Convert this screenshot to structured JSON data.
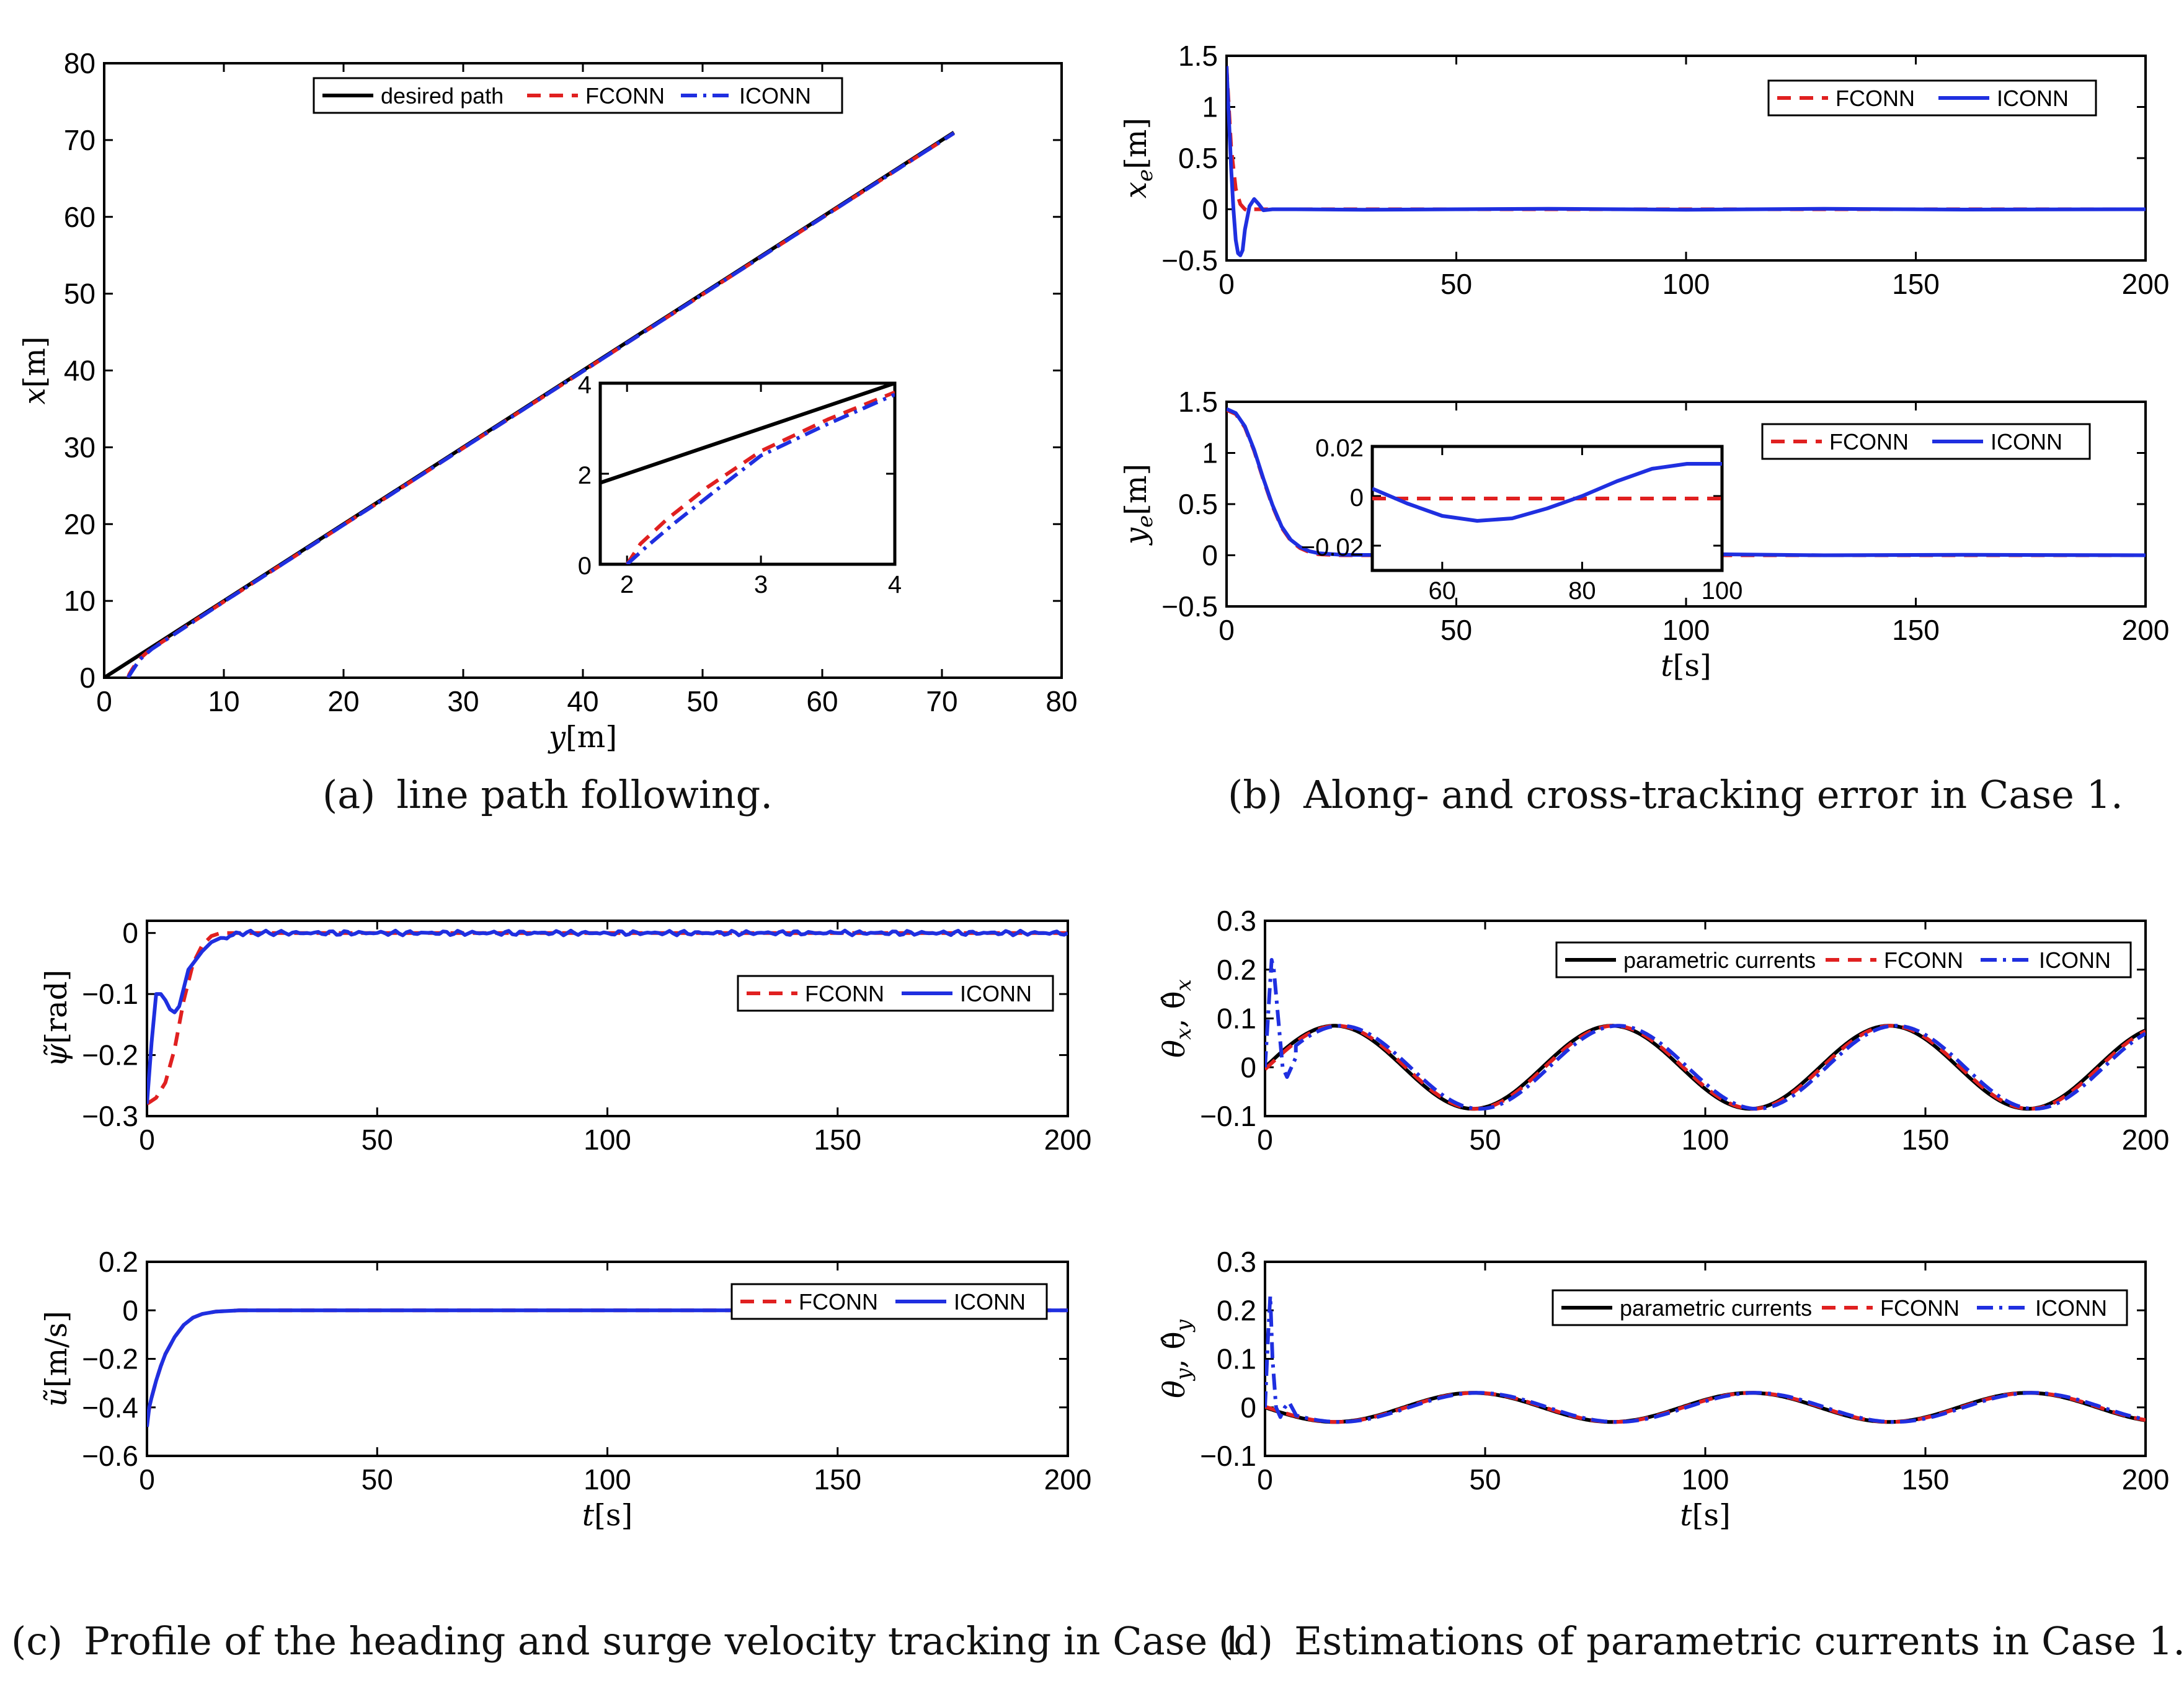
{
  "colors": {
    "black": "#000000",
    "red": "#e02020",
    "blue": "#1f2fe0"
  },
  "captions": {
    "a": {
      "tag": "(a)",
      "text": "line path following."
    },
    "b": {
      "tag": "(b)",
      "text": "Along- and cross-tracking error in Case 1."
    },
    "c": {
      "tag": "(c)",
      "text": "Profile of the heading and surge velocity tracking in Case 1."
    },
    "d": {
      "tag": "(d)",
      "text": "Estimations of parametric currents in Case 1."
    }
  },
  "chart_data": [
    {
      "id": "a",
      "type": "line",
      "title": "",
      "xlabel": {
        "v": "y",
        "u": "[m]"
      },
      "ylabel": {
        "v": "x",
        "u": "[m]"
      },
      "xlim": [
        0,
        80
      ],
      "ylim": [
        0,
        80
      ],
      "xticks": [
        "0",
        "10",
        "20",
        "30",
        "40",
        "50",
        "60",
        "70",
        "80"
      ],
      "yticks": [
        "0",
        "10",
        "20",
        "30",
        "40",
        "50",
        "60",
        "70",
        "80"
      ],
      "legend": "top-center",
      "series": [
        {
          "name": "desired path",
          "color": "#000000",
          "dash": "solid",
          "x": [
            0,
            71
          ],
          "y": [
            0,
            71
          ]
        },
        {
          "name": "FCONN",
          "color": "#e02020",
          "dash": "dash",
          "x": [
            2,
            2.1,
            2.3,
            2.6,
            3,
            3.5,
            4,
            10,
            71
          ],
          "y": [
            0,
            0.45,
            1.0,
            1.7,
            2.5,
            3.2,
            3.8,
            9.9,
            70.9
          ]
        },
        {
          "name": "ICONN",
          "color": "#1f2fe0",
          "dash": "dashdot",
          "x": [
            2,
            2.15,
            2.35,
            2.65,
            3,
            3.5,
            4,
            10,
            71
          ],
          "y": [
            0,
            0.4,
            0.9,
            1.6,
            2.4,
            3.1,
            3.75,
            9.9,
            70.9
          ]
        }
      ],
      "inset": {
        "xlim": [
          1.8,
          4
        ],
        "ylim": [
          0,
          4
        ],
        "xticks": [
          "2",
          "3",
          "4"
        ],
        "yticks": [
          "0",
          "2",
          "4"
        ],
        "series": [
          {
            "name": "desired path",
            "x": [
              1.8,
              4
            ],
            "y": [
              1.8,
              4
            ]
          },
          {
            "name": "FCONN",
            "x": [
              2,
              2.1,
              2.3,
              2.6,
              3,
              3.5,
              4
            ],
            "y": [
              0,
              0.45,
              1.0,
              1.7,
              2.5,
              3.2,
              3.8
            ]
          },
          {
            "name": "ICONN",
            "x": [
              2,
              2.15,
              2.35,
              2.65,
              3,
              3.5,
              4
            ],
            "y": [
              0,
              0.4,
              0.9,
              1.6,
              2.4,
              3.1,
              3.75
            ]
          }
        ]
      }
    },
    {
      "id": "b1",
      "type": "line",
      "title": "",
      "xlabel": null,
      "ylabel": {
        "v": "x",
        "sub": "e",
        "u": "[m]"
      },
      "xlim": [
        0,
        200
      ],
      "ylim": [
        -0.5,
        1.5
      ],
      "xticks": [
        "0",
        "50",
        "100",
        "150",
        "200"
      ],
      "yticks": [
        "−0.5",
        "0",
        "0.5",
        "1",
        "1.5"
      ],
      "legend": "top-right",
      "series": [
        {
          "name": "FCONN",
          "color": "#e02020",
          "dash": "dash",
          "x": [
            0,
            0.5,
            1,
            2,
            3,
            4,
            5,
            6,
            8,
            10,
            20,
            50,
            100,
            150,
            200
          ],
          "y": [
            1.4,
            1.0,
            0.6,
            0.2,
            0.05,
            0.0,
            -0.02,
            0.0,
            0.0,
            0.0,
            0.0,
            0.0,
            0.0,
            0.0,
            0.0
          ]
        },
        {
          "name": "ICONN",
          "color": "#1f2fe0",
          "dash": "solid",
          "x": [
            0,
            0.5,
            1,
            1.5,
            2,
            2.5,
            3,
            3.5,
            4,
            5,
            6,
            7,
            8,
            10,
            15,
            30,
            50,
            70,
            100,
            130,
            160,
            200
          ],
          "y": [
            1.4,
            0.9,
            0.4,
            0.0,
            -0.3,
            -0.43,
            -0.45,
            -0.4,
            -0.2,
            0.03,
            0.1,
            0.05,
            -0.01,
            0.0,
            0.0,
            -0.005,
            0.0,
            0.005,
            -0.005,
            0.005,
            -0.003,
            0.0
          ]
        }
      ]
    },
    {
      "id": "b2",
      "type": "line",
      "title": "",
      "xlabel": {
        "v": "t",
        "u": "[s]"
      },
      "ylabel": {
        "v": "y",
        "sub": "e",
        "u": "[m]"
      },
      "xlim": [
        0,
        200
      ],
      "ylim": [
        -0.5,
        1.5
      ],
      "xticks": [
        "0",
        "50",
        "100",
        "150",
        "200"
      ],
      "yticks": [
        "−0.5",
        "0",
        "0.5",
        "1",
        "1.5"
      ],
      "legend": "top-right",
      "series": [
        {
          "name": "FCONN",
          "color": "#e02020",
          "dash": "dash",
          "x": [
            0,
            2,
            4,
            6,
            8,
            10,
            12,
            14,
            16,
            18,
            20,
            25,
            30,
            50,
            100,
            150,
            200
          ],
          "y": [
            1.42,
            1.38,
            1.25,
            1.02,
            0.74,
            0.48,
            0.27,
            0.14,
            0.07,
            0.03,
            0.01,
            0.0,
            0.0,
            0.0,
            0.0,
            0.0,
            0.0
          ]
        },
        {
          "name": "ICONN",
          "color": "#1f2fe0",
          "dash": "solid",
          "x": [
            0,
            2,
            4,
            6,
            8,
            10,
            12,
            14,
            16,
            18,
            20,
            25,
            30,
            50,
            65,
            80,
            100,
            130,
            160,
            200
          ],
          "y": [
            1.43,
            1.39,
            1.26,
            1.03,
            0.75,
            0.49,
            0.28,
            0.15,
            0.08,
            0.04,
            0.02,
            0.005,
            0.003,
            0.003,
            -0.008,
            -0.002,
            0.013,
            0.0,
            0.005,
            0.0
          ]
        }
      ],
      "inset": {
        "xlim": [
          50,
          100
        ],
        "ylim": [
          -0.03,
          0.02
        ],
        "xticks": [
          "60",
          "80",
          "100"
        ],
        "yticks": [
          "−0.02",
          "0",
          "0.02"
        ],
        "series": [
          {
            "name": "FCONN",
            "x": [
              50,
              100
            ],
            "y": [
              -0.001,
              -0.001
            ]
          },
          {
            "name": "ICONN",
            "x": [
              50,
              55,
              60,
              65,
              70,
              75,
              80,
              85,
              90,
              95,
              100
            ],
            "y": [
              0.003,
              -0.003,
              -0.008,
              -0.01,
              -0.009,
              -0.005,
              0.0,
              0.006,
              0.011,
              0.013,
              0.013
            ]
          }
        ]
      }
    },
    {
      "id": "c1",
      "type": "line",
      "title": "",
      "xlabel": null,
      "ylabel": {
        "v": "ψ̃",
        "u": "[rad]"
      },
      "xlim": [
        0,
        200
      ],
      "ylim": [
        -0.3,
        0.02
      ],
      "xticks": [
        "0",
        "50",
        "100",
        "150",
        "200"
      ],
      "yticks": [
        "−0.3",
        "−0.2",
        "−0.1",
        "0"
      ],
      "legend": "top-right",
      "series": [
        {
          "name": "FCONN",
          "color": "#e02020",
          "dash": "dash",
          "x": [
            0,
            2,
            4,
            6,
            8,
            10,
            12,
            14,
            16,
            20,
            30,
            200
          ],
          "y": [
            -0.28,
            -0.27,
            -0.245,
            -0.19,
            -0.11,
            -0.05,
            -0.02,
            -0.005,
            0.0,
            0.0,
            0.0,
            0.0
          ]
        },
        {
          "name": "ICONN",
          "color": "#1f2fe0",
          "dash": "solid",
          "x": [
            0,
            1,
            2,
            3,
            4,
            5,
            6,
            7,
            8,
            9,
            10,
            12,
            14,
            16,
            18,
            20,
            25,
            30,
            50,
            100,
            150,
            200
          ],
          "y": [
            -0.28,
            -0.18,
            -0.1,
            -0.1,
            -0.11,
            -0.125,
            -0.13,
            -0.12,
            -0.09,
            -0.06,
            -0.05,
            -0.03,
            -0.015,
            -0.008,
            -0.005,
            0.0,
            0.0,
            0.0,
            0.0,
            0.0,
            0.0,
            0.0
          ],
          "noise": 0.004
        }
      ]
    },
    {
      "id": "c2",
      "type": "line",
      "title": "",
      "xlabel": {
        "v": "t",
        "u": "[s]"
      },
      "ylabel": {
        "v": "ũ",
        "u": "[m/s]"
      },
      "xlim": [
        0,
        200
      ],
      "ylim": [
        -0.6,
        0.2
      ],
      "xticks": [
        "0",
        "50",
        "100",
        "150",
        "200"
      ],
      "yticks": [
        "−0.6",
        "−0.4",
        "−0.2",
        "0",
        "0.2"
      ],
      "legend": "top-right",
      "series": [
        {
          "name": "FCONN",
          "color": "#e02020",
          "dash": "dash",
          "x": [
            0,
            1,
            2,
            3,
            4,
            6,
            8,
            10,
            12,
            15,
            20,
            30,
            200
          ],
          "y": [
            -0.45,
            -0.36,
            -0.29,
            -0.23,
            -0.18,
            -0.11,
            -0.06,
            -0.03,
            -0.015,
            -0.005,
            0.0,
            0.0,
            0.0
          ]
        },
        {
          "name": "ICONN",
          "color": "#1f2fe0",
          "dash": "solid",
          "x": [
            0,
            0.5,
            1,
            2,
            3,
            4,
            6,
            8,
            10,
            12,
            15,
            20,
            30,
            200
          ],
          "y": [
            -0.48,
            -0.4,
            -0.36,
            -0.29,
            -0.23,
            -0.18,
            -0.11,
            -0.06,
            -0.03,
            -0.015,
            -0.005,
            0.0,
            0.0,
            0.0
          ]
        }
      ]
    },
    {
      "id": "d1",
      "type": "line",
      "title": "",
      "xlabel": null,
      "ylabel": {
        "v": "θ",
        "sub": "x",
        "u": ", θ̂",
        "sub2": "x"
      },
      "xlim": [
        0,
        200
      ],
      "ylim": [
        -0.1,
        0.3
      ],
      "xticks": [
        "0",
        "50",
        "100",
        "150",
        "200"
      ],
      "yticks": [
        "−0.1",
        "0",
        "0.1",
        "0.2",
        "0.3"
      ],
      "legend": "top-right",
      "series": [
        {
          "name": "parametric currents",
          "color": "#000000",
          "dash": "solid",
          "func": "sin",
          "amp": 0.085,
          "period": 63,
          "phase": 0
        },
        {
          "name": "FCONN",
          "color": "#e02020",
          "dash": "dash",
          "func": "sin",
          "amp": 0.085,
          "period": 63,
          "phase": 0.5
        },
        {
          "name": "ICONN",
          "color": "#1f2fe0",
          "dash": "dashdot",
          "func": "sin",
          "amp": 0.085,
          "period": 63,
          "phase": 1.5,
          "spike_x": [
            0,
            1,
            1.5,
            2,
            3,
            4,
            5,
            6,
            7
          ],
          "spike_y": [
            0.0,
            0.15,
            0.22,
            0.2,
            0.1,
            0.0,
            -0.02,
            0.0,
            0.02
          ]
        }
      ]
    },
    {
      "id": "d2",
      "type": "line",
      "title": "",
      "xlabel": {
        "v": "t",
        "u": "[s]"
      },
      "ylabel": {
        "v": "θ",
        "sub": "y",
        "u": ", θ̂",
        "sub2": "y"
      },
      "xlim": [
        0,
        200
      ],
      "ylim": [
        -0.1,
        0.3
      ],
      "xticks": [
        "0",
        "50",
        "100",
        "150",
        "200"
      ],
      "yticks": [
        "−0.1",
        "0",
        "0.1",
        "0.2",
        "0.3"
      ],
      "legend": "top-right",
      "series": [
        {
          "name": "parametric currents",
          "color": "#000000",
          "dash": "solid",
          "func": "negsin",
          "amp": 0.03,
          "period": 63,
          "phase": 0
        },
        {
          "name": "FCONN",
          "color": "#e02020",
          "dash": "dash",
          "func": "negsin",
          "amp": 0.03,
          "period": 63,
          "phase": 0.5
        },
        {
          "name": "ICONN",
          "color": "#1f2fe0",
          "dash": "dashdot",
          "func": "negsin",
          "amp": 0.03,
          "period": 63,
          "phase": 1.2,
          "spike_x": [
            0,
            0.7,
            1.2,
            1.7,
            2.5,
            3.5,
            4.5,
            5.5,
            7
          ],
          "spike_y": [
            0.0,
            0.15,
            0.23,
            0.1,
            0.0,
            -0.02,
            0.0,
            0.01,
            -0.015
          ]
        }
      ]
    }
  ]
}
